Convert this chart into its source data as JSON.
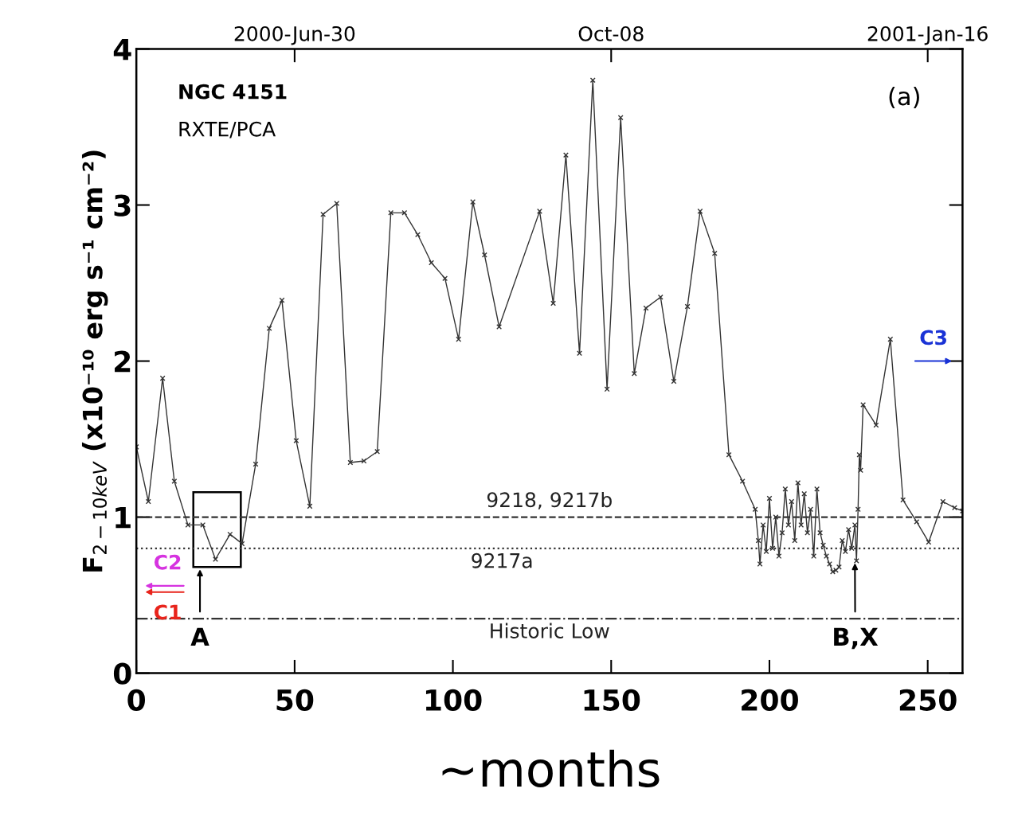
{
  "chart_data": {
    "type": "line",
    "xlabel": "~months",
    "ylabel": "F$_{2−10keV}$ (x10⁻¹⁰ erg s⁻¹ cm⁻²)",
    "xlim": [
      0,
      261
    ],
    "ylim": [
      0,
      4
    ],
    "xticks": [
      0,
      50,
      100,
      150,
      200,
      250
    ],
    "yticks": [
      0,
      1,
      2,
      3,
      4
    ],
    "x2lim": [
      "2000-05-11",
      "2001-01-27"
    ],
    "x2ticks": [
      {
        "value": "2000-06-30",
        "label": "2000-Jun-30"
      },
      {
        "value": "2000-10-08",
        "label": "Oct-08"
      },
      {
        "value": "2001-01-16",
        "label": "2001-Jan-16"
      }
    ],
    "grid": false,
    "marker": "cross",
    "line_style": "solid",
    "series": [
      {
        "color": "#333333",
        "x": [
          0,
          3.8,
          8.3,
          12,
          16.3,
          21,
          25,
          29.6,
          33.4,
          37.7,
          42,
          46,
          50.5,
          54.8,
          59,
          63.3,
          67.6,
          71.9,
          76.1,
          80.4,
          84.7,
          88.9,
          93.2,
          97.5,
          101.8,
          106.3,
          110,
          114.6,
          127.4,
          131.7,
          135.7,
          140,
          144.2,
          148.7,
          153,
          157.3,
          161,
          165.6,
          169.8,
          174.1,
          178.1,
          182.7,
          187.2,
          191.5,
          195.5,
          196.5,
          197,
          198,
          199,
          200,
          201,
          202,
          203,
          204,
          205,
          206,
          207,
          208,
          209,
          210,
          211,
          212,
          213,
          214,
          215,
          216,
          217,
          218,
          219,
          220,
          221,
          222,
          223,
          224,
          225,
          226,
          227,
          227.5,
          228,
          228.4,
          228.8,
          229.6,
          233.7,
          238.2,
          242.2,
          246.5,
          250.3,
          254.8,
          258.5,
          261
        ],
        "values": [
          1.45,
          1.1,
          1.89,
          1.23,
          0.95,
          0.95,
          0.73,
          0.89,
          0.83,
          1.34,
          2.21,
          2.39,
          1.49,
          1.07,
          2.94,
          3.01,
          1.35,
          1.36,
          1.42,
          2.95,
          2.95,
          2.81,
          2.63,
          2.53,
          2.14,
          3.02,
          2.68,
          2.22,
          2.96,
          2.37,
          3.32,
          2.05,
          3.8,
          1.82,
          3.56,
          1.92,
          2.34,
          2.41,
          1.87,
          2.35,
          2.96,
          2.69,
          1.4,
          1.23,
          1.05,
          0.85,
          0.7,
          0.95,
          0.78,
          1.12,
          0.8,
          1.0,
          0.75,
          0.9,
          1.18,
          0.95,
          1.1,
          0.85,
          1.22,
          0.95,
          1.15,
          0.9,
          1.05,
          0.75,
          1.18,
          0.9,
          0.82,
          0.75,
          0.7,
          0.65,
          0.66,
          0.68,
          0.85,
          0.78,
          0.92,
          0.8,
          0.95,
          0.72,
          1.05,
          1.4,
          1.3,
          1.72,
          1.59,
          2.14,
          1.11,
          0.97,
          0.84,
          1.1,
          1.06,
          1.04
        ]
      }
    ],
    "ref_lines": [
      {
        "axis": "y",
        "value": 1,
        "label": "9218, 9217b",
        "line_style": "dashed",
        "color": "#333333"
      },
      {
        "axis": "y",
        "value": 0.8,
        "label": "9217a",
        "line_style": "dotted",
        "color": "#333333"
      },
      {
        "axis": "y",
        "value": 0.35,
        "label": "Historic Low",
        "line_style": "dashdot",
        "color": "#333333"
      }
    ],
    "annotations": [
      "NGC 4151",
      "RXTE/PCA",
      "(a)",
      "A",
      {
        "text": "B,X",
        "x": 227,
        "y": 0.72
      },
      "C1",
      "C2",
      "C3"
    ]
  }
}
